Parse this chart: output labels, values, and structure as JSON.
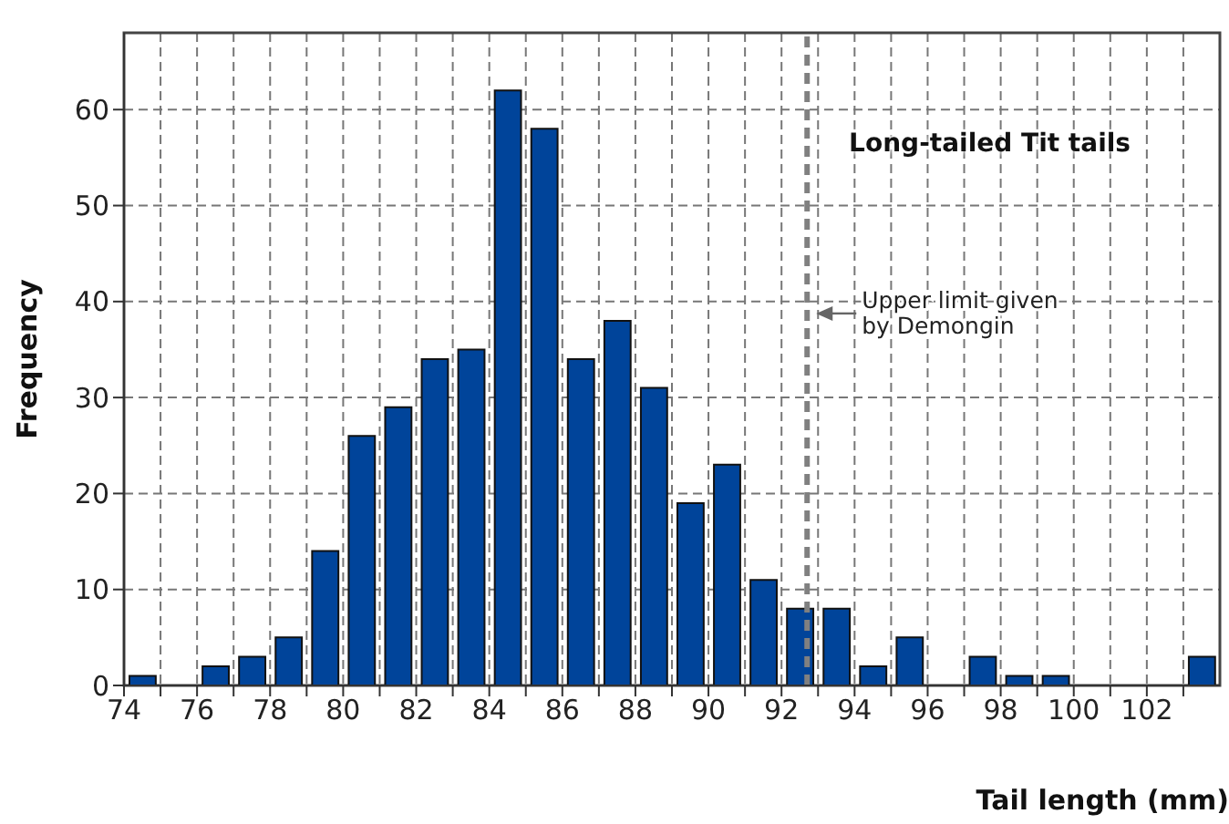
{
  "chart_data": {
    "type": "histogram",
    "title": "Long-tailed Tit tails",
    "xlabel": "Tail length (mm)",
    "ylabel": "Frequency",
    "bins": [
      74,
      75,
      76,
      77,
      78,
      79,
      80,
      81,
      82,
      83,
      84,
      85,
      86,
      87,
      88,
      89,
      90,
      91,
      92,
      93,
      94,
      95,
      96,
      97,
      98,
      99,
      100,
      101,
      102,
      103,
      104
    ],
    "values": [
      1,
      0,
      2,
      3,
      5,
      14,
      26,
      29,
      34,
      35,
      62,
      58,
      34,
      38,
      31,
      19,
      23,
      11,
      8,
      8,
      2,
      5,
      0,
      3,
      1,
      1,
      0,
      0,
      0,
      3
    ],
    "color": "#00449a",
    "xlim": [
      74,
      104
    ],
    "xticks": [
      74,
      {
        "value": 75,
        "label": null
      },
      76,
      {
        "value": 77,
        "label": null
      },
      78,
      {
        "value": 79,
        "label": null
      },
      80,
      {
        "value": 81,
        "label": null
      },
      82,
      {
        "value": 83,
        "label": null
      },
      84,
      {
        "value": 85,
        "label": null
      },
      86,
      {
        "value": 87,
        "label": null
      },
      88,
      {
        "value": 89,
        "label": null
      },
      90,
      {
        "value": 91,
        "label": null
      },
      92,
      {
        "value": 93,
        "label": null
      },
      94,
      {
        "value": 95,
        "label": null
      },
      96,
      {
        "value": 97,
        "label": null
      },
      98,
      {
        "value": 99,
        "label": null
      },
      100,
      {
        "value": 101,
        "label": null
      },
      102,
      {
        "value": 103,
        "label": null
      }
    ],
    "ylim": [
      0,
      68
    ],
    "yticks": [
      0,
      10,
      20,
      30,
      40,
      50,
      60
    ],
    "grid": true,
    "ref_lines": [
      {
        "axis": "x",
        "value": 92.7,
        "label": "Upper limit given\nby Demongin",
        "color": "#808080",
        "line_style": "dashed"
      }
    ]
  }
}
